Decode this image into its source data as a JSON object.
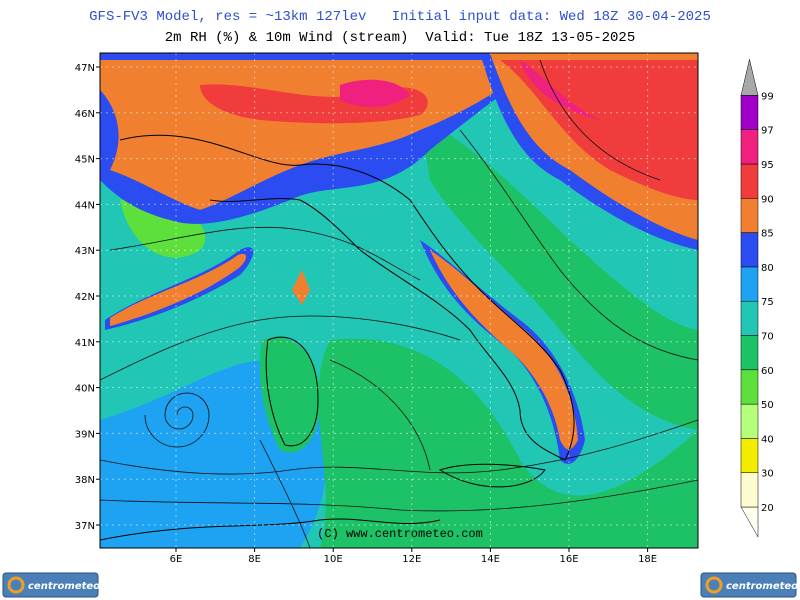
{
  "header": {
    "line1": "GFS-FV3 Model, res = ~13km 127lev   Initial input data: Wed 18Z 30-04-2025",
    "line2": "2m RH (%) & 10m Wind (stream)  Valid: Tue 18Z 13-05-2025"
  },
  "map": {
    "lat_labels": [
      "47N",
      "46N",
      "45N",
      "44N",
      "43N",
      "42N",
      "41N",
      "40N",
      "39N",
      "38N",
      "37N"
    ],
    "lon_labels": [
      "6E",
      "8E",
      "10E",
      "12E",
      "14E",
      "16E",
      "18E"
    ],
    "watermark": "(C) www.centrometeo.com"
  },
  "colorbar": {
    "below_color": "#fffff0",
    "top_color": "#a8a8a8",
    "levels": [
      {
        "label": 20,
        "color": "#fffbd0"
      },
      {
        "label": 30,
        "color": "#f2ec00"
      },
      {
        "label": 40,
        "color": "#b4ff7c"
      },
      {
        "label": 50,
        "color": "#5ee03c"
      },
      {
        "label": 60,
        "color": "#1ec266"
      },
      {
        "label": 70,
        "color": "#22c6b4"
      },
      {
        "label": 75,
        "color": "#1ea2f2"
      },
      {
        "label": 80,
        "color": "#2a4cf0"
      },
      {
        "label": 85,
        "color": "#f08030"
      },
      {
        "label": 90,
        "color": "#f03c3c"
      },
      {
        "label": 95,
        "color": "#f0207e"
      },
      {
        "label": 97,
        "color": "#a000c8"
      },
      {
        "label": 99,
        "color": "#a8a8a8"
      }
    ]
  },
  "logos": {
    "left": "centrometeo",
    "right": "centrometeo"
  }
}
